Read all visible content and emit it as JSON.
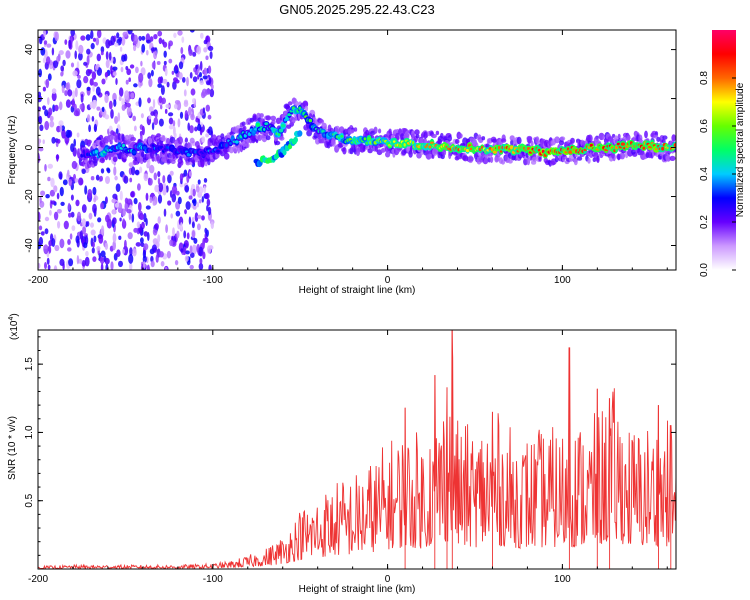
{
  "chart_data": [
    {
      "type": "heatmap",
      "title": "GN05.2025.295.22.43.C23",
      "xlabel": "Height of straight line (km)",
      "ylabel": "Frequency (Hz)",
      "xlim": [
        -200,
        165
      ],
      "ylim": [
        -50,
        48
      ],
      "xticks": [
        "-200",
        "-100",
        "0",
        "100"
      ],
      "yticks": [
        "40",
        "20",
        "0",
        "-20",
        "-40"
      ],
      "colorbar": {
        "label": "Normalized spectral amplitude",
        "range": [
          0,
          1
        ],
        "ticks": [
          "0.0",
          "0.2",
          "0.4",
          "0.6",
          "0.8"
        ],
        "colors": [
          "#ffffff",
          "#cc99ff",
          "#6600ff",
          "#0000ff",
          "#00ccff",
          "#00ff66",
          "#66ff00",
          "#ffff00",
          "#ff6600",
          "#ff0000",
          "#ff0066"
        ]
      },
      "ridge": {
        "x": [
          -175,
          -165,
          -155,
          -145,
          -135,
          -125,
          -115,
          -105,
          -95,
          -85,
          -75,
          -68,
          -62,
          -58,
          -55,
          -52,
          -48,
          -44,
          -40,
          -35,
          -30,
          -20,
          -10,
          0,
          10,
          20,
          30,
          40,
          50,
          60,
          70,
          80,
          90,
          100,
          110,
          120,
          130,
          140,
          150,
          160,
          165
        ],
        "freq": [
          -3,
          -2,
          0,
          -1,
          0,
          -1,
          -2,
          -2,
          0,
          4,
          8,
          9,
          6,
          12,
          14,
          16,
          15,
          10,
          7,
          5,
          4,
          3,
          3,
          2,
          2,
          1,
          1,
          0,
          0,
          -1,
          -1,
          -1,
          -2,
          -1,
          -1,
          0,
          0,
          1,
          1,
          0,
          0
        ],
        "amplitude": [
          0.3,
          0.45,
          0.35,
          0.4,
          0.3,
          0.3,
          0.3,
          0.3,
          0.35,
          0.4,
          0.45,
          0.4,
          0.5,
          0.45,
          0.5,
          0.5,
          0.55,
          0.5,
          0.4,
          0.45,
          0.5,
          0.55,
          0.6,
          0.65,
          0.65,
          0.75,
          0.75,
          0.8,
          0.75,
          0.8,
          0.8,
          0.85,
          0.9,
          0.85,
          0.8,
          0.85,
          0.85,
          0.8,
          0.85,
          0.8,
          0.8
        ]
      },
      "secondary_branch": {
        "x": [
          -75,
          -70,
          -65,
          -60,
          -55,
          -50
        ],
        "freq": [
          -6,
          -5,
          -4,
          -2,
          2,
          6
        ]
      },
      "noise_region": {
        "x_range": [
          -200,
          -100
        ],
        "freq_range": [
          -50,
          48
        ],
        "amplitude_range": [
          0.05,
          0.3
        ]
      }
    },
    {
      "type": "line",
      "xlabel": "Height of straight line (km)",
      "ylabel": "SNR (10 * v/v)",
      "multiplier_label": "(x10",
      "multiplier_exp": "4",
      "multiplier_close": ")",
      "xlim": [
        -200,
        165
      ],
      "ylim": [
        0,
        1.75
      ],
      "xticks": [
        "-200",
        "-100",
        "0",
        "100"
      ],
      "yticks": [
        "0.5",
        "1.0",
        "1.5"
      ],
      "color": "#ee3333",
      "envelope": {
        "x": [
          -200,
          -180,
          -160,
          -140,
          -120,
          -100,
          -90,
          -80,
          -70,
          -60,
          -50,
          -40,
          -30,
          -20,
          -10,
          0,
          10,
          20,
          30,
          35,
          37,
          40,
          50,
          60,
          70,
          80,
          90,
          100,
          110,
          120,
          130,
          140,
          150,
          160,
          165
        ],
        "y": [
          0.02,
          0.03,
          0.03,
          0.03,
          0.03,
          0.04,
          0.06,
          0.1,
          0.15,
          0.25,
          0.45,
          0.55,
          0.65,
          0.7,
          0.8,
          0.95,
          1.05,
          1.0,
          1.25,
          1.35,
          1.75,
          1.1,
          1.05,
          1.2,
          1.05,
          1.0,
          1.05,
          1.05,
          1.1,
          1.15,
          1.35,
          1.05,
          1.1,
          1.1,
          1.05
        ]
      },
      "peaks": [
        {
          "x": 37,
          "y": 1.75
        },
        {
          "x": 104,
          "y": 1.62
        },
        {
          "x": 27,
          "y": 1.42
        },
        {
          "x": 34,
          "y": 1.33
        },
        {
          "x": 120,
          "y": 1.32
        },
        {
          "x": 127,
          "y": 1.25
        },
        {
          "x": 10,
          "y": 1.18
        },
        {
          "x": 60,
          "y": 1.15
        },
        {
          "x": 155,
          "y": 1.2
        },
        {
          "x": 162,
          "y": 1.05
        }
      ]
    }
  ]
}
